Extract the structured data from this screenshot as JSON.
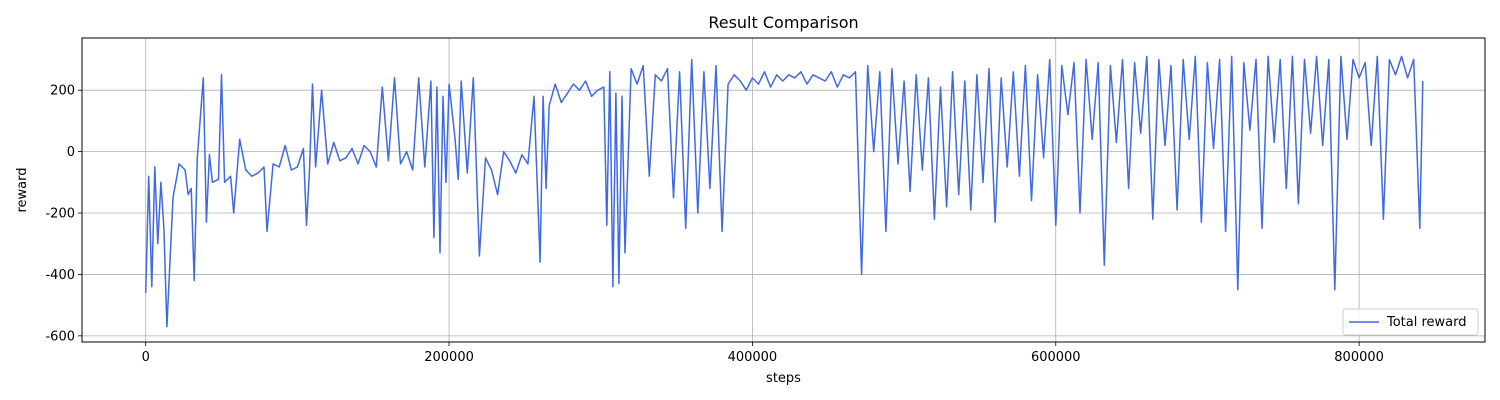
{
  "chart_data": {
    "type": "line",
    "title": "Result Comparison",
    "xlabel": "steps",
    "ylabel": "reward",
    "xlim": [
      -42000,
      883000
    ],
    "ylim": [
      -620,
      370
    ],
    "xticks": [
      0,
      200000,
      400000,
      600000,
      800000
    ],
    "yticks": [
      -600,
      -400,
      -200,
      0,
      200
    ],
    "grid": true,
    "legend_position": "lower-right",
    "series": [
      {
        "name": "Total reward",
        "color": "#4169e1",
        "x": [
          0,
          2000,
          4000,
          6000,
          8000,
          10000,
          12000,
          14000,
          18000,
          22000,
          26000,
          28000,
          30000,
          32000,
          34000,
          38000,
          40000,
          42000,
          44000,
          48000,
          50000,
          52000,
          56000,
          58000,
          62000,
          66000,
          70000,
          74000,
          78000,
          80000,
          84000,
          88000,
          92000,
          96000,
          100000,
          104000,
          106000,
          108000,
          110000,
          112000,
          116000,
          120000,
          124000,
          128000,
          132000,
          136000,
          140000,
          144000,
          148000,
          152000,
          156000,
          160000,
          164000,
          168000,
          172000,
          176000,
          180000,
          184000,
          188000,
          190000,
          192000,
          194000,
          196000,
          198000,
          200000,
          204000,
          206000,
          208000,
          212000,
          216000,
          220000,
          224000,
          228000,
          232000,
          236000,
          240000,
          244000,
          248000,
          252000,
          256000,
          260000,
          262000,
          264000,
          266000,
          270000,
          274000,
          278000,
          282000,
          286000,
          290000,
          294000,
          298000,
          302000,
          304000,
          306000,
          308000,
          310000,
          312000,
          314000,
          316000,
          320000,
          324000,
          328000,
          332000,
          336000,
          340000,
          344000,
          348000,
          352000,
          356000,
          360000,
          364000,
          368000,
          372000,
          376000,
          380000,
          384000,
          388000,
          392000,
          396000,
          400000,
          404000,
          408000,
          412000,
          416000,
          420000,
          424000,
          428000,
          432000,
          436000,
          440000,
          444000,
          448000,
          452000,
          456000,
          460000,
          464000,
          468000,
          472000,
          476000,
          480000,
          484000,
          488000,
          492000,
          496000,
          500000,
          504000,
          508000,
          512000,
          516000,
          520000,
          524000,
          528000,
          532000,
          536000,
          540000,
          544000,
          548000,
          552000,
          556000,
          560000,
          564000,
          568000,
          572000,
          576000,
          580000,
          584000,
          588000,
          592000,
          596000,
          600000,
          604000,
          608000,
          612000,
          616000,
          620000,
          624000,
          628000,
          632000,
          636000,
          640000,
          644000,
          648000,
          652000,
          656000,
          660000,
          664000,
          668000,
          672000,
          676000,
          680000,
          684000,
          688000,
          692000,
          696000,
          700000,
          704000,
          708000,
          712000,
          716000,
          720000,
          724000,
          728000,
          732000,
          736000,
          740000,
          744000,
          748000,
          752000,
          756000,
          760000,
          764000,
          768000,
          772000,
          776000,
          780000,
          784000,
          788000,
          792000,
          796000,
          800000,
          804000,
          808000,
          812000,
          816000,
          820000,
          824000,
          828000,
          832000,
          836000,
          840000,
          842000
        ],
        "values": [
          -460,
          -80,
          -440,
          -50,
          -300,
          -100,
          -250,
          -570,
          -150,
          -40,
          -60,
          -140,
          -120,
          -420,
          -20,
          240,
          -230,
          -10,
          -100,
          -90,
          250,
          -100,
          -80,
          -200,
          40,
          -60,
          -80,
          -70,
          -50,
          -260,
          -40,
          -50,
          20,
          -60,
          -50,
          10,
          -240,
          -60,
          220,
          -50,
          200,
          -40,
          30,
          -30,
          -20,
          10,
          -40,
          20,
          0,
          -50,
          210,
          -30,
          240,
          -40,
          0,
          -60,
          240,
          -50,
          230,
          -280,
          210,
          -330,
          180,
          -100,
          220,
          40,
          -90,
          230,
          -70,
          240,
          -340,
          -20,
          -60,
          -140,
          0,
          -30,
          -70,
          -10,
          -40,
          180,
          -360,
          180,
          -120,
          150,
          220,
          160,
          190,
          220,
          200,
          230,
          180,
          200,
          210,
          -240,
          260,
          -440,
          190,
          -430,
          180,
          -330,
          270,
          220,
          280,
          -80,
          250,
          230,
          270,
          -150,
          260,
          -250,
          300,
          -200,
          260,
          -120,
          280,
          -260,
          220,
          250,
          230,
          200,
          240,
          220,
          260,
          210,
          250,
          230,
          250,
          240,
          260,
          220,
          250,
          240,
          230,
          260,
          210,
          250,
          240,
          260,
          -400,
          280,
          0,
          260,
          -260,
          270,
          -40,
          230,
          -130,
          250,
          -60,
          240,
          -220,
          210,
          -180,
          260,
          -140,
          230,
          -190,
          250,
          -100,
          270,
          -230,
          240,
          -50,
          260,
          -80,
          280,
          -160,
          250,
          -20,
          300,
          -240,
          280,
          120,
          290,
          -200,
          300,
          40,
          290,
          -370,
          280,
          30,
          300,
          -120,
          290,
          60,
          310,
          -220,
          300,
          20,
          280,
          -190,
          300,
          40,
          310,
          -230,
          290,
          10,
          300,
          -260,
          310,
          -450,
          290,
          70,
          300,
          -250,
          310,
          30,
          300,
          -120,
          310,
          -170,
          300,
          60,
          310,
          20,
          300,
          -450,
          310,
          40,
          300,
          240,
          290,
          20,
          310,
          -220,
          300,
          250,
          310,
          240,
          300,
          -250,
          230
        ]
      }
    ]
  }
}
